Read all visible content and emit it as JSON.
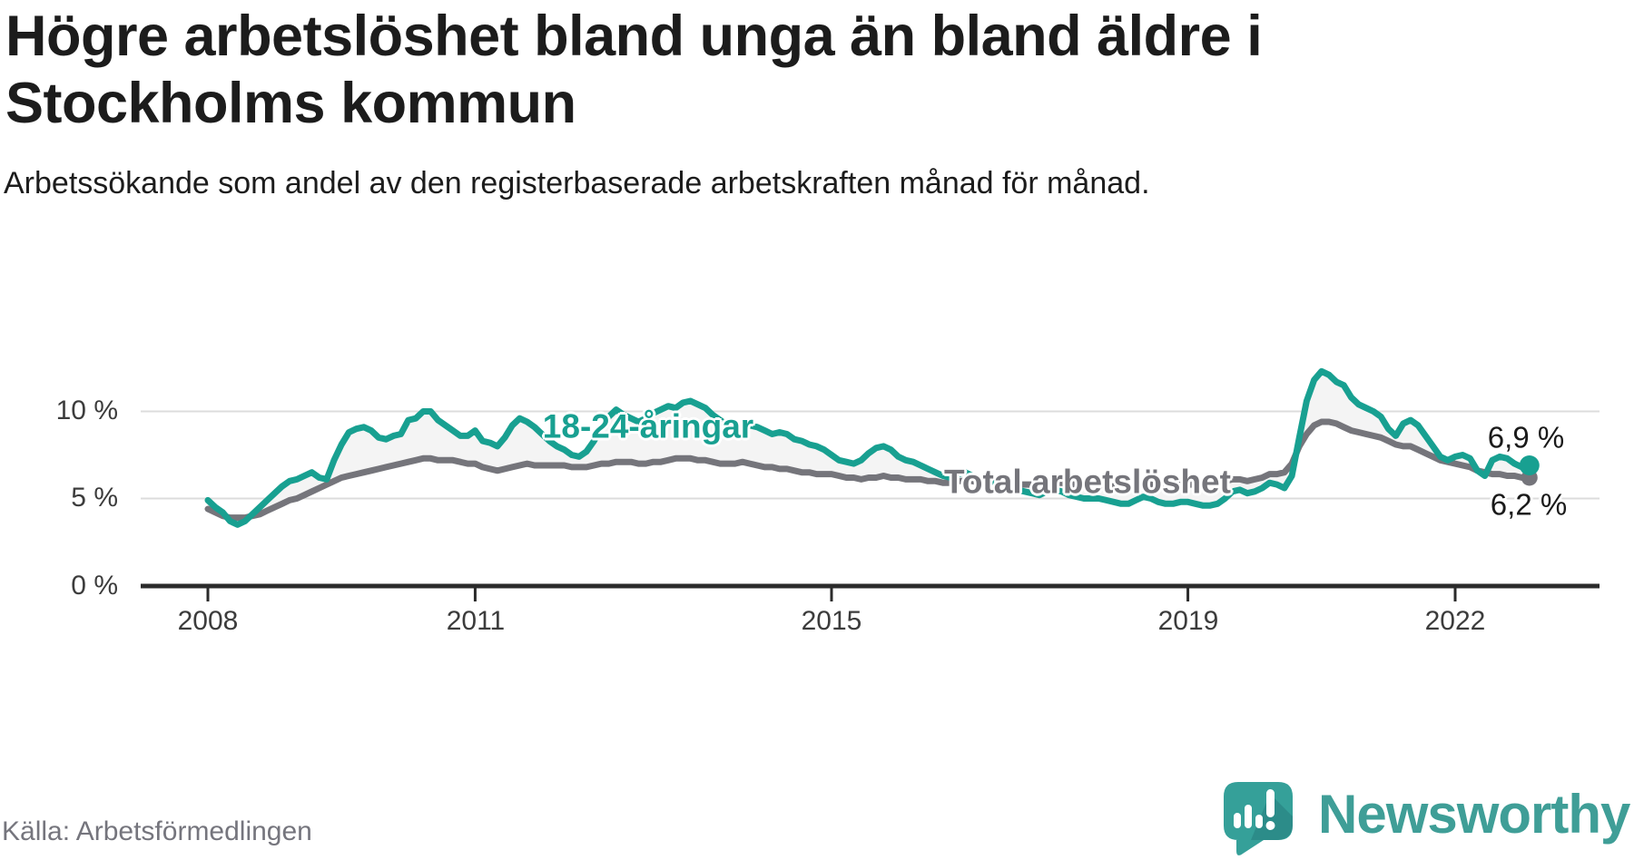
{
  "header": {
    "title": "Högre arbetslöshet bland unga än bland äldre i Stockholms kommun",
    "subtitle": "Arbetssökande som andel av den registerbaserade arbetskraften månad för månad."
  },
  "axis": {
    "y_labels": [
      "10 %",
      "5 %",
      "0 %"
    ],
    "x_labels": [
      "2008",
      "2011",
      "2015",
      "2019",
      "2022"
    ]
  },
  "chart_data": {
    "type": "line",
    "title": "Högre arbetslöshet bland unga än bland äldre i Stockholms kommun",
    "ylabel": "",
    "xlabel": "",
    "unit": "%",
    "x_start": "2008-01",
    "x_end": "2022-11",
    "frequency": "monthly",
    "ylim": [
      0,
      13
    ],
    "y_ticks": [
      0,
      5,
      10
    ],
    "grid_lines_at": [
      5,
      10
    ],
    "x_tick_years": [
      2008,
      2011,
      2015,
      2019,
      2022
    ],
    "legend_position": "inline-labels",
    "fill_between_color": "#f4f4f4",
    "axis_color": "#2b2b2b",
    "grid_color": "#dcdcdc",
    "series": [
      {
        "name": "18-24-åringar",
        "color": "#18a091",
        "end_label": "6,9 %",
        "end_value": 6.9,
        "values": [
          4.9,
          4.5,
          4.2,
          3.7,
          3.5,
          3.7,
          4.1,
          4.5,
          4.9,
          5.3,
          5.7,
          6.0,
          6.1,
          6.3,
          6.5,
          6.2,
          6.1,
          7.2,
          8.1,
          8.8,
          9.0,
          9.1,
          8.9,
          8.5,
          8.4,
          8.6,
          8.7,
          9.5,
          9.6,
          10.0,
          10.0,
          9.5,
          9.2,
          8.9,
          8.6,
          8.6,
          8.9,
          8.3,
          8.2,
          8.0,
          8.5,
          9.2,
          9.6,
          9.4,
          9.1,
          8.7,
          8.3,
          8.0,
          7.8,
          7.5,
          7.4,
          7.7,
          8.3,
          9.0,
          9.7,
          10.1,
          9.8,
          9.6,
          9.4,
          9.6,
          9.9,
          10.1,
          10.3,
          10.2,
          10.5,
          10.6,
          10.4,
          10.2,
          9.8,
          9.5,
          9.2,
          9.1,
          9.0,
          9.2,
          9.1,
          8.9,
          8.7,
          8.8,
          8.7,
          8.4,
          8.3,
          8.1,
          8.0,
          7.8,
          7.5,
          7.2,
          7.1,
          7.0,
          7.2,
          7.6,
          7.9,
          8.0,
          7.8,
          7.4,
          7.2,
          7.1,
          6.9,
          6.7,
          6.5,
          6.3,
          6.2,
          6.4,
          6.5,
          6.3,
          6.1,
          6.0,
          5.9,
          5.8,
          5.7,
          5.5,
          5.4,
          5.3,
          5.2,
          5.4,
          5.5,
          5.4,
          5.2,
          5.1,
          5.0,
          5.0,
          5.0,
          4.9,
          4.8,
          4.7,
          4.7,
          4.9,
          5.1,
          5.0,
          4.8,
          4.7,
          4.7,
          4.8,
          4.8,
          4.7,
          4.6,
          4.6,
          4.7,
          5.0,
          5.4,
          5.5,
          5.3,
          5.4,
          5.6,
          5.9,
          5.8,
          5.6,
          6.3,
          8.5,
          10.6,
          11.8,
          12.3,
          12.1,
          11.7,
          11.5,
          10.8,
          10.4,
          10.2,
          10.0,
          9.7,
          9.0,
          8.6,
          9.3,
          9.5,
          9.2,
          8.6,
          8.0,
          7.4,
          7.2,
          7.4,
          7.5,
          7.3,
          6.6,
          6.3,
          7.2,
          7.4,
          7.3,
          7.0,
          6.8,
          6.9
        ]
      },
      {
        "name": "Total arbetslöshet",
        "color": "#75757b",
        "end_label": "6,2 %",
        "end_value": 6.2,
        "values": [
          4.4,
          4.2,
          4.0,
          3.9,
          3.9,
          3.9,
          4.0,
          4.1,
          4.3,
          4.5,
          4.7,
          4.9,
          5.0,
          5.2,
          5.4,
          5.6,
          5.8,
          6.0,
          6.2,
          6.3,
          6.4,
          6.5,
          6.6,
          6.7,
          6.8,
          6.9,
          7.0,
          7.1,
          7.2,
          7.3,
          7.3,
          7.2,
          7.2,
          7.2,
          7.1,
          7.0,
          7.0,
          6.8,
          6.7,
          6.6,
          6.7,
          6.8,
          6.9,
          7.0,
          6.9,
          6.9,
          6.9,
          6.9,
          6.9,
          6.8,
          6.8,
          6.8,
          6.9,
          7.0,
          7.0,
          7.1,
          7.1,
          7.1,
          7.0,
          7.0,
          7.1,
          7.1,
          7.2,
          7.3,
          7.3,
          7.3,
          7.2,
          7.2,
          7.1,
          7.0,
          7.0,
          7.0,
          7.1,
          7.0,
          6.9,
          6.8,
          6.8,
          6.7,
          6.7,
          6.6,
          6.5,
          6.5,
          6.4,
          6.4,
          6.4,
          6.3,
          6.2,
          6.2,
          6.1,
          6.2,
          6.2,
          6.3,
          6.2,
          6.2,
          6.1,
          6.1,
          6.1,
          6.0,
          6.0,
          5.9,
          5.9,
          6.0,
          6.0,
          6.0,
          5.9,
          5.9,
          5.9,
          5.9,
          5.9,
          5.8,
          5.8,
          5.8,
          5.8,
          5.8,
          5.9,
          5.9,
          5.8,
          5.8,
          5.8,
          5.8,
          5.8,
          5.7,
          5.7,
          5.6,
          5.6,
          5.7,
          5.8,
          5.8,
          5.7,
          5.7,
          5.7,
          5.8,
          5.8,
          5.8,
          5.8,
          5.8,
          5.9,
          6.0,
          6.1,
          6.1,
          6.0,
          6.1,
          6.2,
          6.4,
          6.4,
          6.5,
          7.0,
          8.0,
          8.7,
          9.2,
          9.4,
          9.4,
          9.3,
          9.1,
          8.9,
          8.8,
          8.7,
          8.6,
          8.5,
          8.3,
          8.1,
          8.0,
          8.0,
          7.8,
          7.6,
          7.4,
          7.2,
          7.1,
          7.0,
          6.9,
          6.8,
          6.6,
          6.5,
          6.4,
          6.4,
          6.3,
          6.3,
          6.2,
          6.2
        ]
      }
    ]
  },
  "footer": {
    "source": "Källa: Arbetsförmedlingen",
    "brand": "Newsworthy"
  }
}
